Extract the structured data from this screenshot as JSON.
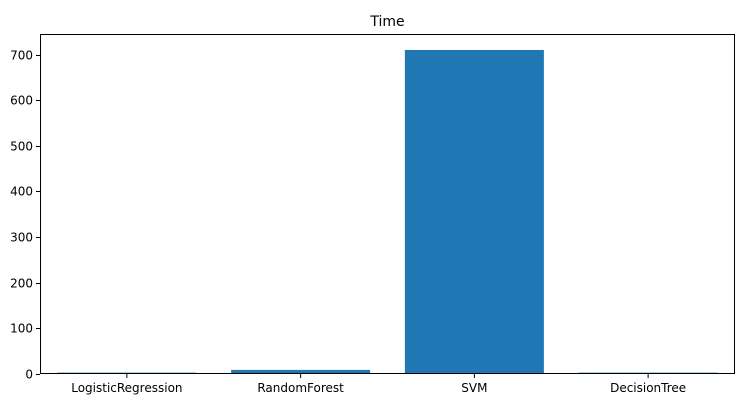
{
  "chart_data": {
    "type": "bar",
    "title": "Time",
    "xlabel": "",
    "ylabel": "",
    "categories": [
      "LogisticRegression",
      "RandomForest",
      "SVM",
      "DecisionTree"
    ],
    "values": [
      3,
      9,
      710,
      3
    ],
    "ylim": [
      0,
      745
    ],
    "yticks": [
      0,
      100,
      200,
      300,
      400,
      500,
      600,
      700
    ],
    "ytick_labels": [
      "0",
      "100",
      "200",
      "300",
      "400",
      "500",
      "600",
      "700"
    ],
    "bar_color": "#1f77b4",
    "grid": false,
    "legend": false
  }
}
